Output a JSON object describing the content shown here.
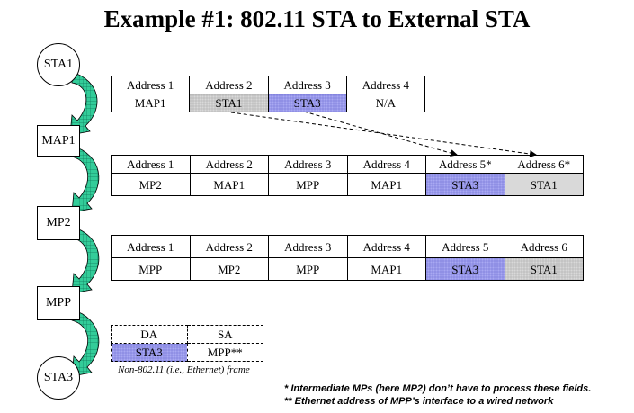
{
  "title": "Example #1: 802.11 STA to External STA",
  "nodes": [
    "STA1",
    "MAP1",
    "MP2",
    "MPP",
    "STA3"
  ],
  "frame1": {
    "headers": [
      "Address 1",
      "Address 2",
      "Address 3",
      "Address 4"
    ],
    "values": [
      "MAP1",
      "STA1",
      "STA3",
      "N/A"
    ]
  },
  "frame2": {
    "headers": [
      "Address 1",
      "Address 2",
      "Address 3",
      "Address 4",
      "Address 5*",
      "Address 6*"
    ],
    "values": [
      "MP2",
      "MAP1",
      "MPP",
      "MAP1",
      "STA3",
      "STA1"
    ]
  },
  "frame3": {
    "headers": [
      "Address 1",
      "Address 2",
      "Address 3",
      "Address 4",
      "Address 5",
      "Address 6"
    ],
    "values": [
      "MPP",
      "MP2",
      "MPP",
      "MAP1",
      "STA3",
      "STA1"
    ]
  },
  "frame4": {
    "headers": [
      "DA",
      "SA"
    ],
    "values": [
      "STA3",
      "MPP**"
    ],
    "caption": "Non-802.11 (i.e., Ethernet) frame"
  },
  "footnotes": [
    "* Intermediate MPs (here MP2) don’t have to process these fields.",
    "** Ethernet address of MPP’s interface to a wired network"
  ],
  "colors": {
    "arrow_fill": "#33cc99",
    "highlight_blue": "#a9a9f2",
    "highlight_gray": "#d9d9d9"
  }
}
